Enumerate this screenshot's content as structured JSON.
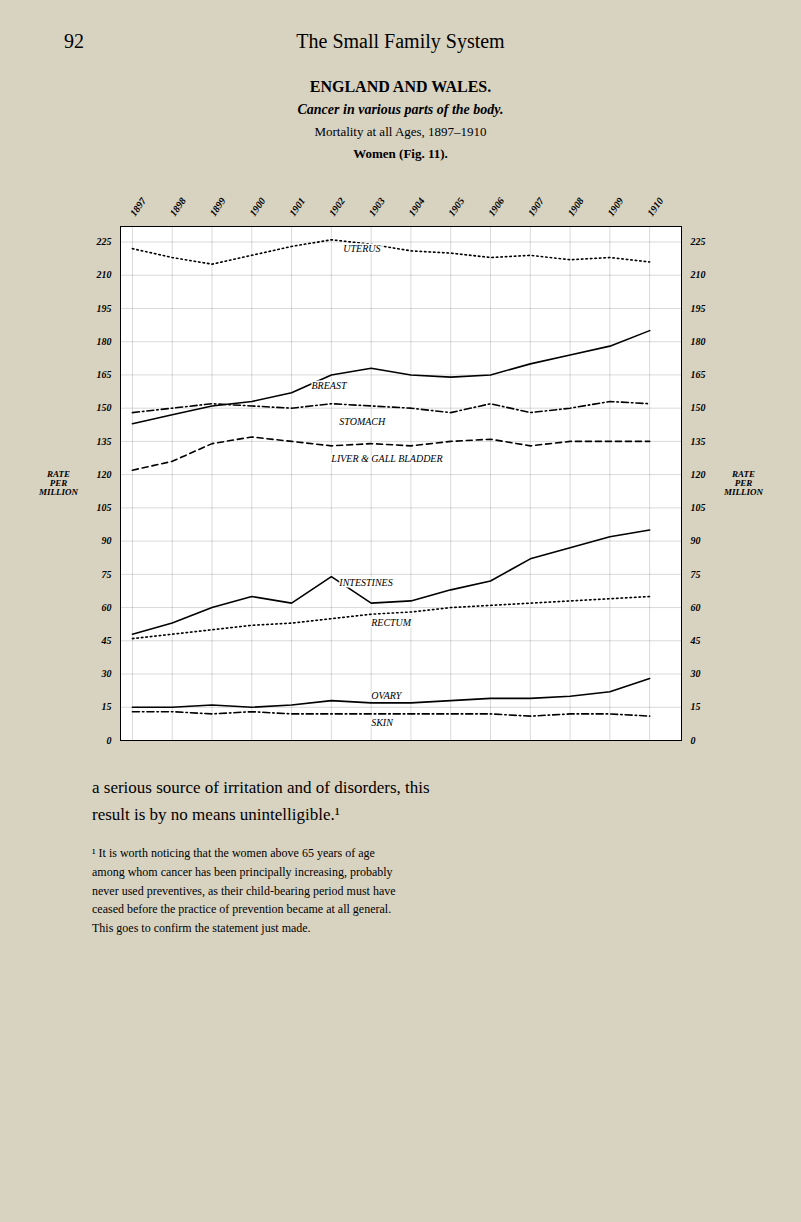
{
  "chart_data": {
    "type": "line",
    "page_number": "92",
    "running_title": "The Small Family System",
    "title": "ENGLAND AND WALES.",
    "subtitle": [
      "Cancer in various parts of the body.",
      "Mortality at all Ages, 1897–1910",
      "Women (Fig. 11)."
    ],
    "y_label": "RATE\nPER\nMILLION",
    "x": [
      1897,
      1898,
      1899,
      1900,
      1901,
      1902,
      1903,
      1904,
      1905,
      1906,
      1907,
      1908,
      1909,
      1910
    ],
    "xlim": [
      1896.7,
      1910.8
    ],
    "xticks": [
      1897,
      1898,
      1899,
      1900,
      1901,
      1902,
      1903,
      1904,
      1905,
      1906,
      1907,
      1908,
      1909,
      1910
    ],
    "ylim": [
      0,
      232
    ],
    "yticks": [
      0,
      15,
      30,
      45,
      60,
      75,
      90,
      105,
      120,
      135,
      150,
      165,
      180,
      195,
      210,
      225
    ],
    "grid": true,
    "color": "#000000",
    "series": [
      {
        "name": "UTERUS",
        "line_style": "dotted",
        "values": [
          222,
          218,
          215,
          219,
          223,
          226,
          224,
          221,
          220,
          218,
          219,
          217,
          218,
          216
        ]
      },
      {
        "name": "BREAST",
        "line_style": "solid",
        "values": [
          143,
          147,
          151,
          153,
          157,
          165,
          168,
          165,
          164,
          165,
          170,
          174,
          178,
          185
        ]
      },
      {
        "name": "STOMACH",
        "line_style": "dashdot",
        "values": [
          148,
          150,
          152,
          151,
          150,
          152,
          151,
          150,
          148,
          152,
          148,
          150,
          153,
          152
        ]
      },
      {
        "name": "LIVER & GALL BLADDER",
        "line_style": "dashed",
        "values": [
          122,
          126,
          134,
          137,
          135,
          133,
          134,
          133,
          135,
          136,
          133,
          135,
          135,
          135
        ]
      },
      {
        "name": "INTESTINES",
        "line_style": "solid",
        "values": [
          48,
          53,
          60,
          65,
          62,
          74,
          62,
          63,
          68,
          72,
          82,
          87,
          92,
          95
        ]
      },
      {
        "name": "RECTUM",
        "line_style": "dotted",
        "values": [
          46,
          48,
          50,
          52,
          53,
          55,
          57,
          58,
          60,
          61,
          62,
          63,
          64,
          65
        ]
      },
      {
        "name": "OVARY",
        "line_style": "solid",
        "values": [
          15,
          15,
          16,
          15,
          16,
          18,
          17,
          17,
          18,
          19,
          19,
          20,
          22,
          28
        ]
      },
      {
        "name": "SKIN",
        "line_style": "dashdot",
        "values": [
          13,
          13,
          12,
          13,
          12,
          12,
          12,
          12,
          12,
          12,
          11,
          12,
          12,
          11
        ]
      }
    ],
    "annotations": [
      {
        "text": "UTERUS",
        "x": 1902.3,
        "y": 222
      },
      {
        "text": "BREAST",
        "x": 1901.5,
        "y": 160
      },
      {
        "text": "STOMACH",
        "x": 1902.2,
        "y": 144
      },
      {
        "text": "LIVER & GALL BLADDER",
        "x": 1902.0,
        "y": 127
      },
      {
        "text": "INTESTINES",
        "x": 1902.2,
        "y": 71
      },
      {
        "text": "RECTUM",
        "x": 1903.0,
        "y": 53
      },
      {
        "text": "OVARY",
        "x": 1903.0,
        "y": 20
      },
      {
        "text": "SKIN",
        "x": 1903.0,
        "y": 8
      }
    ],
    "body_text": "a serious source of irritation and of disorders, this\nresult is by no means unintelligible.¹",
    "footnote": "¹ It is worth noticing that the women above 65 years of age\namong whom cancer has been principally increasing, probably\nnever used preventives, as their child-bearing period must have\nceased before the practice of prevention became at all general.\nThis goes to confirm the statement just made."
  }
}
